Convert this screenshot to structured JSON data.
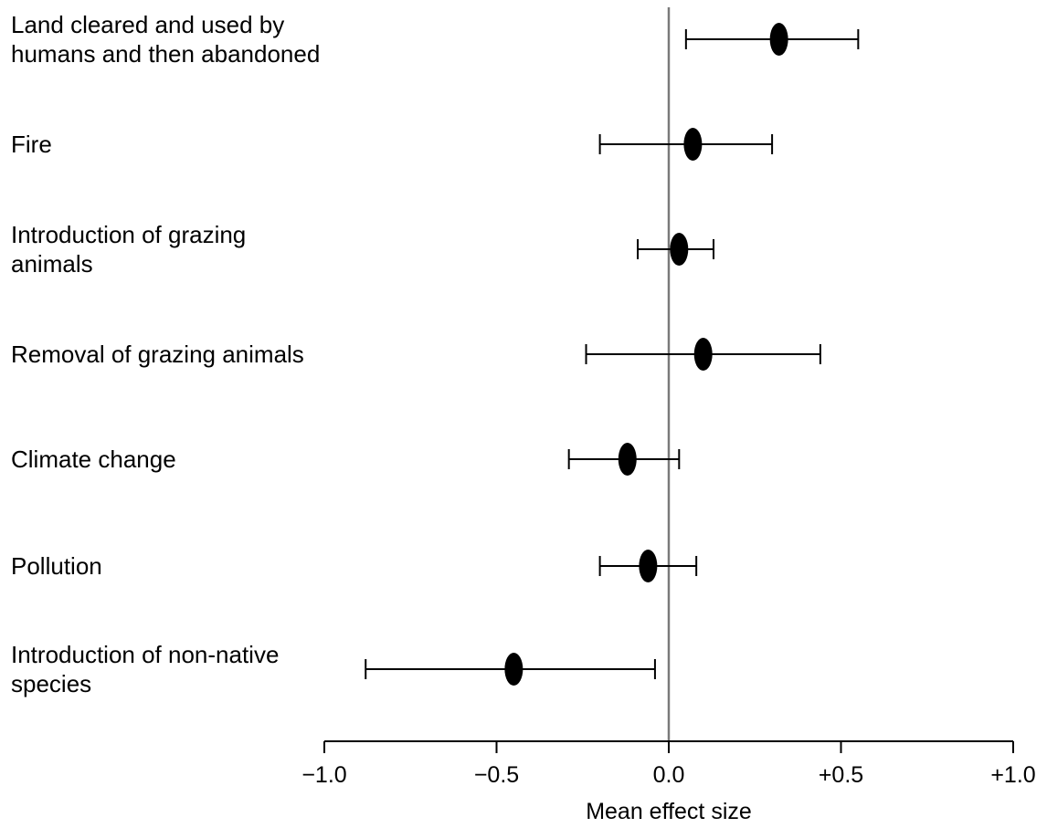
{
  "chart_data": {
    "type": "forest",
    "xlabel": "Mean effect size",
    "xlim": [
      -1.0,
      1.0
    ],
    "xticks": [
      -1.0,
      -0.5,
      0.0,
      0.5,
      1.0
    ],
    "xtick_labels": [
      "−1.0",
      "−0.5",
      "0.0",
      "+0.5",
      "+1.0"
    ],
    "reference_line": 0.0,
    "categories": [
      [
        "Land cleared and used by",
        "humans and then abandoned"
      ],
      [
        "Fire"
      ],
      [
        "Introduction of grazing",
        "animals"
      ],
      [
        "Removal of grazing animals"
      ],
      [
        "Climate change"
      ],
      [
        "Pollution"
      ],
      [
        "Introduction of non-native",
        "species"
      ]
    ],
    "points": [
      {
        "mean": 0.32,
        "low": 0.05,
        "high": 0.55
      },
      {
        "mean": 0.07,
        "low": -0.2,
        "high": 0.3
      },
      {
        "mean": 0.03,
        "low": -0.09,
        "high": 0.13
      },
      {
        "mean": 0.1,
        "low": -0.24,
        "high": 0.44
      },
      {
        "mean": -0.12,
        "low": -0.29,
        "high": 0.03
      },
      {
        "mean": -0.06,
        "low": -0.2,
        "high": 0.08
      },
      {
        "mean": -0.45,
        "low": -0.88,
        "high": -0.04
      }
    ],
    "colors": {
      "marker": "#000000",
      "line": "#000000",
      "reference_line": "#7a7a7a"
    }
  }
}
